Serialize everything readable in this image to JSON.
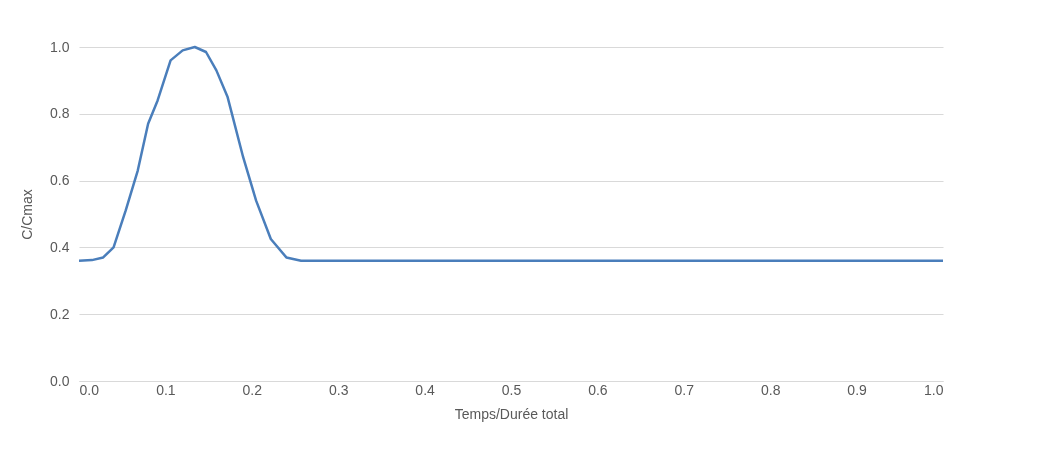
{
  "chart_data": {
    "type": "line",
    "xlabel": "Temps/Durée total",
    "ylabel": "C/Cmax",
    "x": [
      0,
      0.015,
      0.028,
      0.04,
      0.054,
      0.068,
      0.08,
      0.091,
      0.106,
      0.12,
      0.134,
      0.147,
      0.159,
      0.172,
      0.19,
      0.205,
      0.222,
      0.24,
      0.257,
      0.3,
      0.5,
      0.75,
      1.0
    ],
    "series": [
      {
        "color": "#4a7ebb",
        "values": [
          0.36,
          0.362,
          0.37,
          0.4,
          0.51,
          0.63,
          0.77,
          0.84,
          0.96,
          0.99,
          1.0,
          0.985,
          0.93,
          0.85,
          0.67,
          0.54,
          0.425,
          0.37,
          0.36,
          0.36,
          0.36,
          0.36,
          0.36
        ]
      }
    ],
    "xlim": [
      0,
      1
    ],
    "xticks": [
      {
        "value": 0,
        "label": "0.0"
      },
      0.1,
      0.2,
      0.3,
      0.4,
      0.5,
      0.6,
      0.7,
      0.8,
      0.9,
      {
        "value": 1,
        "label": "1.0"
      }
    ],
    "ylim": [
      0,
      1
    ],
    "yticks": [
      {
        "value": 0,
        "label": "0.0"
      },
      0.2,
      0.4,
      0.6,
      0.8,
      {
        "value": 1,
        "label": "1.0"
      }
    ],
    "grid": "y",
    "marker": "none",
    "line_style": "solid"
  }
}
